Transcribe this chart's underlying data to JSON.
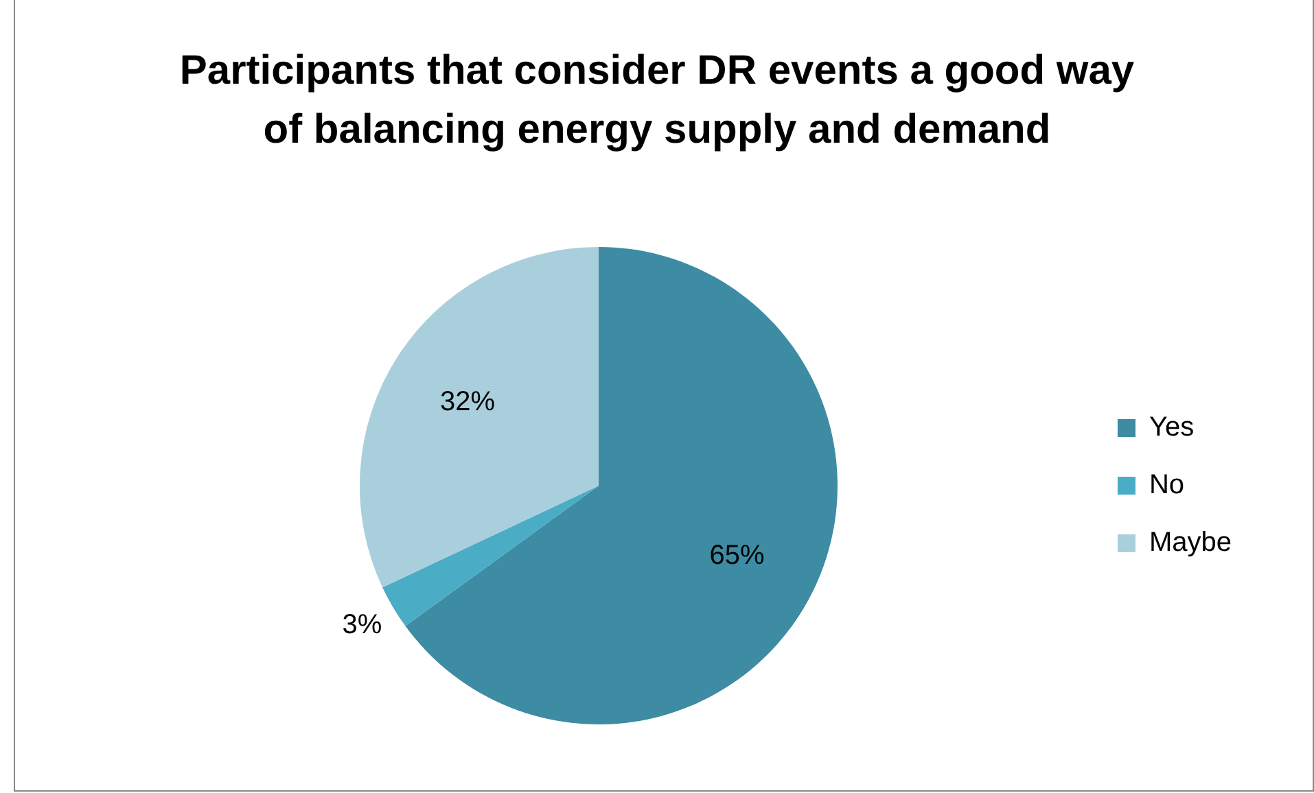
{
  "chart_data": {
    "type": "pie",
    "title": "Participants that consider DR events a good way of balancing energy supply and demand",
    "categories": [
      "Yes",
      "No",
      "Maybe"
    ],
    "values": [
      65,
      3,
      32
    ],
    "colors": [
      "#3d8ca3",
      "#4bacc6",
      "#a9cfdc"
    ],
    "value_labels": [
      "65%",
      "3%",
      "32%"
    ],
    "legend": "right"
  }
}
